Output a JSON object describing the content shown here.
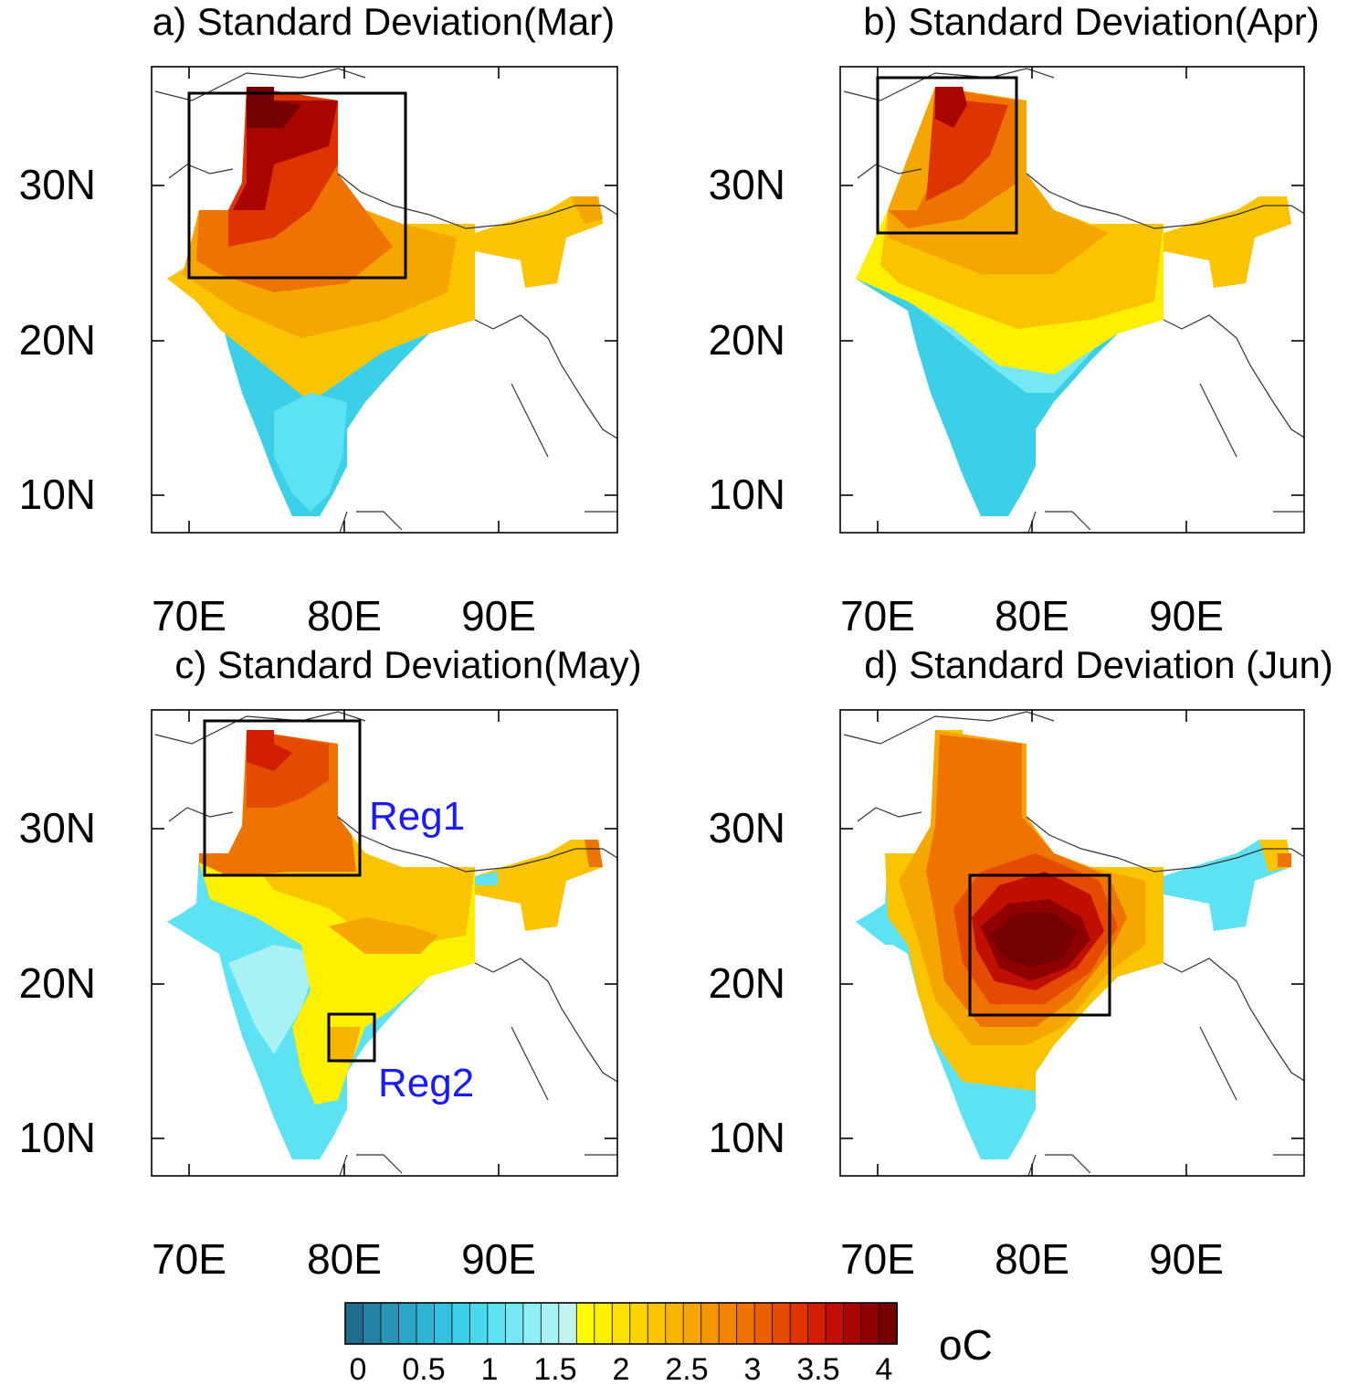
{
  "figure": {
    "panels": [
      {
        "title": "a) Standard Deviation(Mar)",
        "region_labels": []
      },
      {
        "title": "b) Standard Deviation(Apr)",
        "region_labels": []
      },
      {
        "title": "c) Standard Deviation(May)",
        "region_labels": [
          "Reg1",
          "Reg2"
        ]
      },
      {
        "title": "d) Standard Deviation (Jun)",
        "region_labels": []
      }
    ],
    "lat_ticks": [
      "10N",
      "20N",
      "30N"
    ],
    "lon_ticks": [
      "70E",
      "80E",
      "90E"
    ],
    "colorbar": {
      "unit": "oC",
      "tick_labels": [
        "0",
        "0.5",
        "1",
        "1.5",
        "2",
        "2.5",
        "3",
        "3.5",
        "4"
      ],
      "range": [
        0,
        4
      ]
    },
    "colors": {
      "region_label": "#1a1aff",
      "palette": [
        "#1d6e8e",
        "#2283a4",
        "#2795b5",
        "#2ba6c6",
        "#2fb4d4",
        "#34c2e0",
        "#3ccfe8",
        "#48d9ee",
        "#5ce2f2",
        "#75e8f4",
        "#8fedf5",
        "#a8f1f4",
        "#c4f2ef",
        "#fffd00",
        "#fff000",
        "#ffe100",
        "#fdd300",
        "#fbc400",
        "#f8b500",
        "#f6a600",
        "#f39600",
        "#f18500",
        "#ee7300",
        "#ea6000",
        "#e54b00",
        "#de3400",
        "#d21d00",
        "#c00e00",
        "#a80400",
        "#8e0000",
        "#740000"
      ]
    }
  }
}
